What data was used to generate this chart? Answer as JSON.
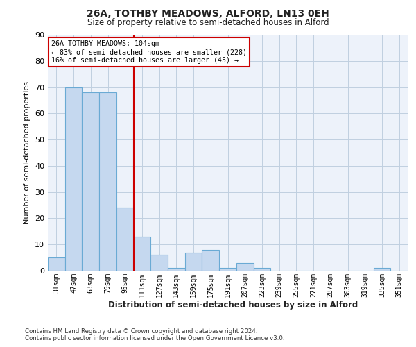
{
  "title_line1": "26A, TOTHBY MEADOWS, ALFORD, LN13 0EH",
  "title_line2": "Size of property relative to semi-detached houses in Alford",
  "xlabel": "Distribution of semi-detached houses by size in Alford",
  "ylabel": "Number of semi-detached properties",
  "categories": [
    "31sqm",
    "47sqm",
    "63sqm",
    "79sqm",
    "95sqm",
    "111sqm",
    "127sqm",
    "143sqm",
    "159sqm",
    "175sqm",
    "191sqm",
    "207sqm",
    "223sqm",
    "239sqm",
    "255sqm",
    "271sqm",
    "287sqm",
    "303sqm",
    "319sqm",
    "335sqm",
    "351sqm"
  ],
  "values": [
    5,
    70,
    68,
    68,
    24,
    13,
    6,
    1,
    7,
    8,
    1,
    3,
    1,
    0,
    0,
    0,
    0,
    0,
    0,
    1,
    0
  ],
  "bar_color": "#c5d8ef",
  "bar_edge_color": "#6aaad4",
  "vline_x_index": 4,
  "vline_color": "#cc0000",
  "annotation_text": "26A TOTHBY MEADOWS: 104sqm\n← 83% of semi-detached houses are smaller (228)\n16% of semi-detached houses are larger (45) →",
  "annotation_box_color": "#cc0000",
  "ylim": [
    0,
    90
  ],
  "yticks": [
    0,
    10,
    20,
    30,
    40,
    50,
    60,
    70,
    80,
    90
  ],
  "footer_line1": "Contains HM Land Registry data © Crown copyright and database right 2024.",
  "footer_line2": "Contains public sector information licensed under the Open Government Licence v3.0.",
  "background_color": "#edf2fa",
  "fig_background": "#ffffff",
  "grid_color": "#c0cfe0"
}
